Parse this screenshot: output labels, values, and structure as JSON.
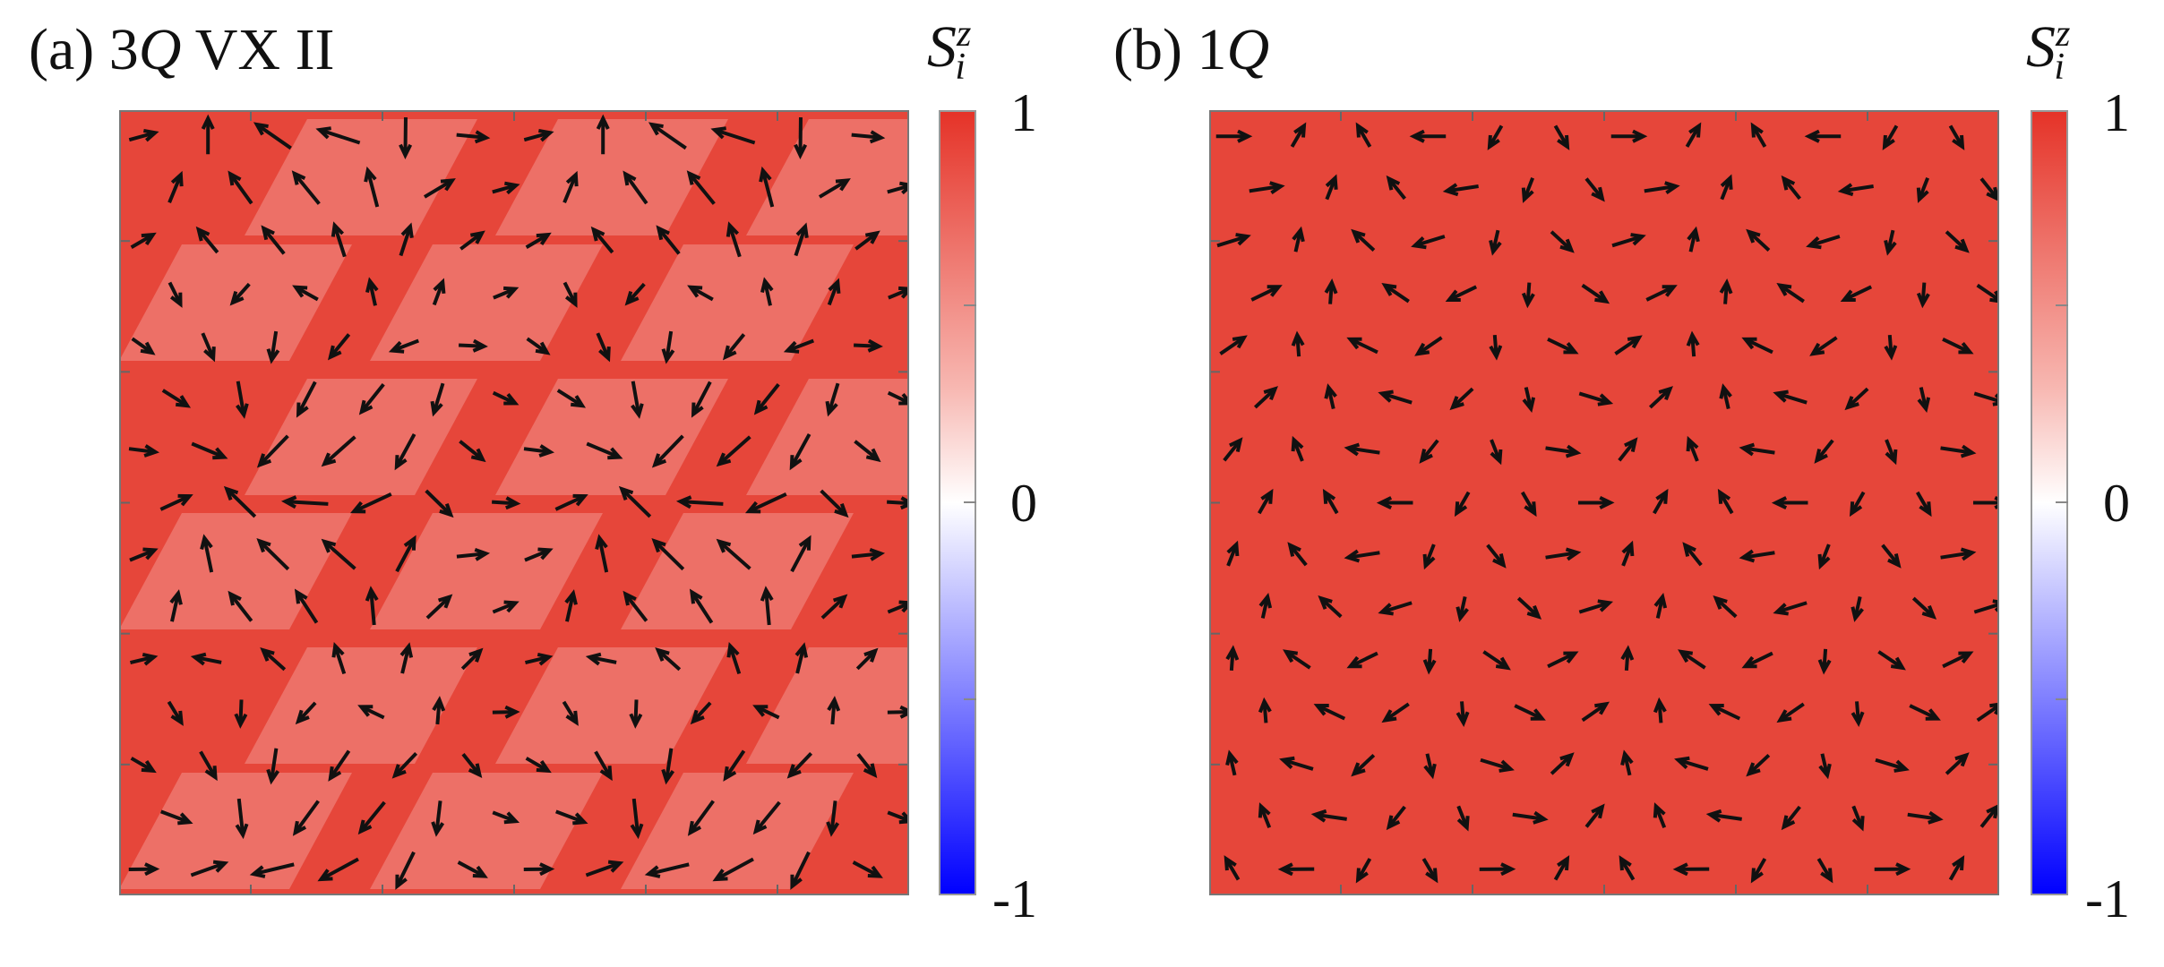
{
  "panels": [
    {
      "label_prefix": "(a) 3",
      "label_italic": "Q",
      "label_suffix": " VX II",
      "base_color": "#e6463a",
      "pattern": "vortex"
    },
    {
      "label_prefix": "(b) 1",
      "label_italic": "Q",
      "label_suffix": "",
      "base_color": "#e6463a",
      "pattern": "spiral"
    }
  ],
  "colorbar": {
    "title_base": "S",
    "title_sup": "z",
    "title_sub": "i",
    "ticks": [
      "1",
      "0",
      "-1"
    ],
    "colors": {
      "top": "#e53328",
      "middle": "#ffffff",
      "bottom": "#0000ff"
    }
  },
  "colors": {
    "arrow": "#111111",
    "light_patch": "#f2948c"
  }
}
